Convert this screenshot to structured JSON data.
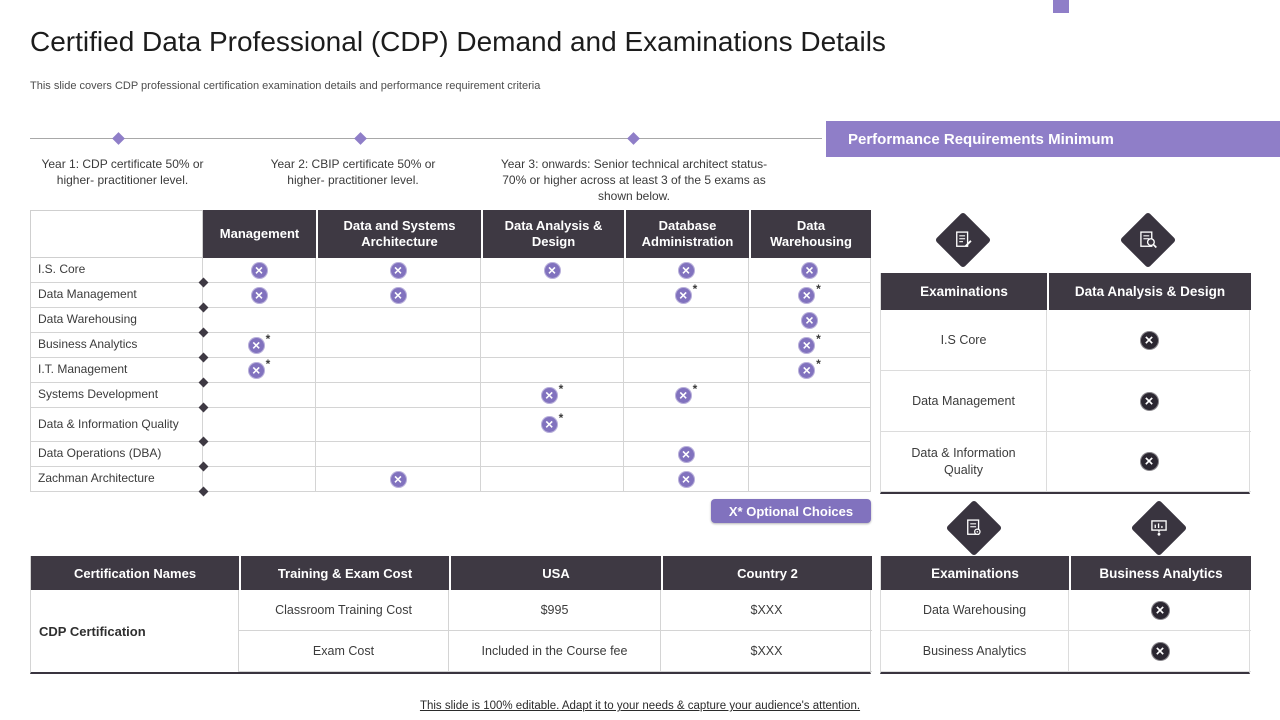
{
  "slide": {
    "title": "Certified Data Professional (CDP) Demand and Examinations Details",
    "subtitle": "This slide covers CDP professional certification examination details and performance requirement criteria",
    "footer": "This slide is 100% editable. Adapt it to your needs & capture your audience's attention."
  },
  "colors": {
    "accent_purple": "#8F7EC8",
    "mark_purple": "#8172BE",
    "header_dark": "#3E3943",
    "mark_dark": "#2B2731"
  },
  "symbols": {
    "cross": "×",
    "optional": "*"
  },
  "timeline": {
    "banner": "Performance Requirements Minimum",
    "milestones": [
      {
        "label": "Year 1: CDP certificate 50% or higher- practitioner level."
      },
      {
        "label": "Year 2: CBIP certificate 50% or higher- practitioner level."
      },
      {
        "label": "Year 3: onwards: Senior technical architect status-70% or higher across at least 3 of the 5 exams as shown below."
      }
    ]
  },
  "matrix": {
    "columns": [
      "Management",
      "Data and Systems Architecture",
      "Data Analysis & Design",
      "Database Administration",
      "Data Warehousing"
    ],
    "rows": [
      {
        "label": "I.S. Core",
        "cells": [
          "x",
          "x",
          "x",
          "x",
          "x"
        ]
      },
      {
        "label": "Data Management",
        "cells": [
          "x",
          "x",
          "",
          "x*",
          "x*"
        ]
      },
      {
        "label": "Data Warehousing",
        "cells": [
          "",
          "",
          "",
          "",
          "x"
        ]
      },
      {
        "label": "Business Analytics",
        "cells": [
          "x*",
          "",
          "",
          "",
          "x*"
        ]
      },
      {
        "label": "I.T. Management",
        "cells": [
          "x*",
          "",
          "",
          "",
          "x*"
        ]
      },
      {
        "label": "Systems Development",
        "cells": [
          "",
          "",
          "x*",
          "x*",
          ""
        ]
      },
      {
        "label": "Data & Information Quality",
        "cells": [
          "",
          "",
          "x*",
          "",
          ""
        ]
      },
      {
        "label": "Data Operations (DBA)",
        "cells": [
          "",
          "",
          "",
          "x",
          ""
        ]
      },
      {
        "label": "Zachman Architecture",
        "cells": [
          "",
          "x",
          "",
          "x",
          ""
        ]
      }
    ]
  },
  "optional_badge": "X* Optional Choices",
  "cost_table": {
    "headers": [
      "Certification Names",
      "Training & Exam Cost",
      "USA",
      "Country 2"
    ],
    "row_group_label": "CDP Certification",
    "rows": [
      {
        "item": "Classroom Training Cost",
        "usa": "$995",
        "country2": "$XXX"
      },
      {
        "item": "Exam Cost",
        "usa": "Included in the Course fee",
        "country2": "$XXX"
      }
    ]
  },
  "panel_dad": {
    "headers": [
      "Examinations",
      "Data Analysis & Design"
    ],
    "rows": [
      "I.S Core",
      "Data Management",
      "Data & Information Quality"
    ]
  },
  "panel_ba": {
    "headers": [
      "Examinations",
      "Business Analytics"
    ],
    "rows": [
      "Data Warehousing",
      "Business Analytics"
    ]
  }
}
